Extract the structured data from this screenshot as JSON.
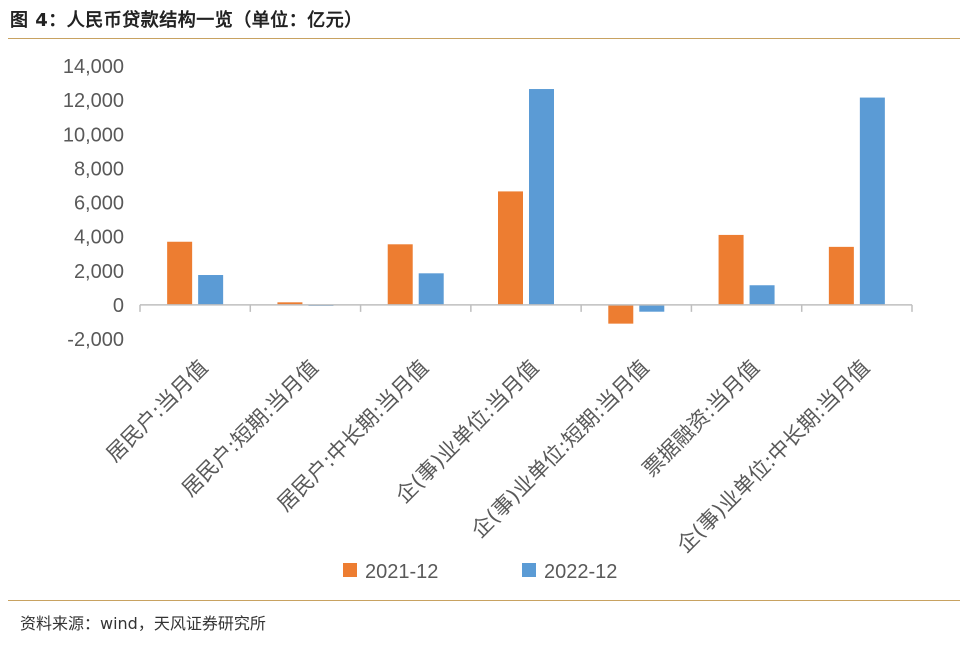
{
  "header": {
    "title": "图 4：人民币贷款结构一览（单位：亿元）"
  },
  "footer": {
    "source": "资料来源：wind，天风证券研究所"
  },
  "colors": {
    "rule": "#C8A261",
    "series_2021": "#ED7D31",
    "series_2022": "#5B9BD5",
    "text": "#595959"
  },
  "chart_data": {
    "type": "bar",
    "title": "图 4：人民币贷款结构一览（单位：亿元）",
    "xlabel": "",
    "ylabel": "",
    "ylim": [
      -2000,
      14000
    ],
    "yticks": [
      14000,
      12000,
      10000,
      8000,
      6000,
      4000,
      2000,
      0,
      -2000
    ],
    "ytick_labels": [
      "14,000",
      "12,000",
      "10,000",
      "8,000",
      "6,000",
      "4,000",
      "2,000",
      "0",
      "-2,000"
    ],
    "categories": [
      "居民户:当月值",
      "居民户:短期:当月值",
      "居民户:中长期:当月值",
      "企(事)业单位:当月值",
      "企(事)业单位:短期:当月值",
      "票据融资:当月值",
      "企(事)业单位:中长期:当月值"
    ],
    "series": [
      {
        "name": "2021-12",
        "color": "#ED7D31",
        "values": [
          3700,
          150,
          3550,
          6650,
          -1100,
          4100,
          3400
        ]
      },
      {
        "name": "2022-12",
        "color": "#5B9BD5",
        "values": [
          1750,
          -50,
          1850,
          12650,
          -400,
          1150,
          12150
        ]
      }
    ],
    "legend_position": "bottom",
    "grid": false
  }
}
